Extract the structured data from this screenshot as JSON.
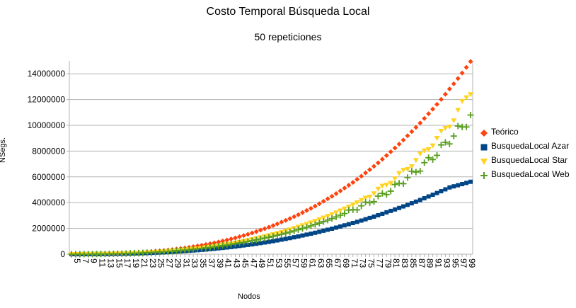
{
  "chart_data": {
    "type": "scatter",
    "title": "Costo Temporal Búsqueda Local",
    "subtitle": "50 repeticiones",
    "xlabel": "Nodos",
    "ylabel": "NSegs.",
    "ylim": [
      0,
      15000000
    ],
    "yticks": [
      "0",
      "2000000",
      "4000000",
      "6000000",
      "8000000",
      "10000000",
      "12000000",
      "14000000"
    ],
    "ytick_values": [
      0,
      2000000,
      4000000,
      6000000,
      8000000,
      10000000,
      12000000,
      14000000
    ],
    "x_start": 5,
    "x_end": 100,
    "xtick_labels": [
      "5",
      "7",
      "9",
      "11",
      "13",
      "15",
      "17",
      "19",
      "21",
      "23",
      "25",
      "27",
      "29",
      "31",
      "33",
      "35",
      "37",
      "39",
      "41",
      "43",
      "45",
      "47",
      "49",
      "51",
      "53",
      "55",
      "57",
      "59",
      "61",
      "63",
      "65",
      "67",
      "69",
      "71",
      "73",
      "75",
      "77",
      "79",
      "81",
      "83",
      "85",
      "87",
      "89",
      "91",
      "93",
      "95",
      "97",
      "99"
    ],
    "grid": "horizontal",
    "legend_position": "right",
    "series": [
      {
        "name": "Teórico",
        "color": "#ff420e",
        "marker": "diamond",
        "x": [
          5,
          10,
          15,
          20,
          25,
          30,
          35,
          40,
          45,
          50,
          55,
          60,
          65,
          70,
          75,
          80,
          85,
          90,
          95,
          100
        ],
        "values": [
          2000,
          15000,
          51000,
          120000,
          235000,
          400000,
          640000,
          950000,
          1360000,
          1870000,
          2490000,
          3230000,
          4110000,
          5130000,
          6310000,
          7660000,
          9190000,
          10900000,
          12820000,
          14950000
        ]
      },
      {
        "name": "BusquedaLocal Azar",
        "color": "#004586",
        "marker": "square",
        "x": [
          5,
          10,
          15,
          20,
          25,
          30,
          35,
          40,
          45,
          50,
          55,
          60,
          65,
          70,
          75,
          80,
          85,
          90,
          95,
          100
        ],
        "values": [
          1000,
          8000,
          25000,
          60000,
          115000,
          200000,
          310000,
          455000,
          640000,
          860000,
          1130000,
          1450000,
          1820000,
          2240000,
          2710000,
          3250000,
          3830000,
          4480000,
          5180000,
          5620000
        ]
      },
      {
        "name": "BusquedaLocal Star",
        "color": "#ffd320",
        "marker": "triangle-down",
        "x": [
          5,
          10,
          15,
          20,
          25,
          30,
          35,
          40,
          45,
          50,
          55,
          60,
          65,
          70,
          75,
          80,
          85,
          90,
          95,
          100
        ],
        "values": [
          1500,
          10000,
          35000,
          85000,
          165000,
          285000,
          450000,
          670000,
          950000,
          1300000,
          1720000,
          2230000,
          2830000,
          3530000,
          4370000,
          5420000,
          6690000,
          8280000,
          10100000,
          12700000
        ]
      },
      {
        "name": "BusquedaLocal Web",
        "color": "#579d1c",
        "marker": "plus",
        "x": [
          5,
          10,
          15,
          20,
          25,
          30,
          35,
          40,
          45,
          50,
          55,
          60,
          65,
          70,
          75,
          80,
          85,
          90,
          95,
          100
        ],
        "values": [
          1500,
          10000,
          33000,
          80000,
          155000,
          265000,
          420000,
          620000,
          870000,
          1180000,
          1550000,
          2000000,
          2530000,
          3160000,
          3890000,
          4780000,
          5950000,
          7250000,
          8900000,
          10650000
        ]
      }
    ]
  }
}
